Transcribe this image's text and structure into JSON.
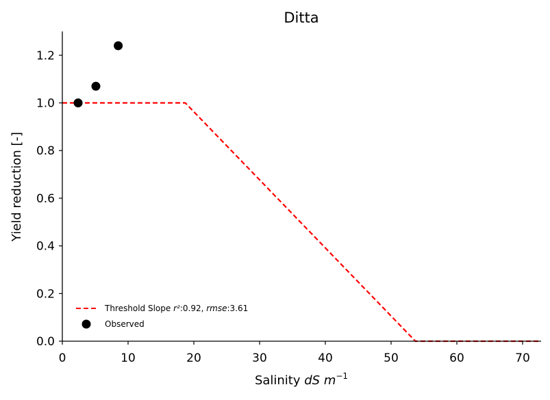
{
  "chart_data": {
    "type": "line",
    "title": "Ditta",
    "xlabel_main": "Salinity ",
    "xlabel_var": "dS m",
    "xlabel_exp": "−1",
    "ylabel": "Yield reduction [-]",
    "xlim": [
      0,
      72.5
    ],
    "ylim": [
      0,
      1.3
    ],
    "xticks": [
      0,
      10,
      20,
      30,
      40,
      50,
      60,
      70
    ],
    "yticks": [
      0.0,
      0.2,
      0.4,
      0.6,
      0.8,
      1.0,
      1.2
    ],
    "ytick_labels": [
      "0.0",
      "0.2",
      "0.4",
      "0.6",
      "0.8",
      "1.0",
      "1.2"
    ],
    "grid": false,
    "legend_position": "lower-left",
    "series": [
      {
        "name": "Threshold Slope",
        "legend_stats_1": "r²",
        "legend_stats_1_value": ":0.92, ",
        "legend_stats_2": "rmse",
        "legend_stats_2_value": ":3.61",
        "kind": "line",
        "style": "dashed",
        "color": "#ff0000",
        "x": [
          0,
          18.7,
          53.7,
          72.5
        ],
        "y": [
          1.0,
          1.0,
          0.0,
          0.0
        ]
      },
      {
        "name": "Observed",
        "kind": "scatter",
        "color": "#000000",
        "x": [
          2.4,
          5.1,
          8.5
        ],
        "y": [
          1.0,
          1.07,
          1.24
        ]
      }
    ]
  }
}
